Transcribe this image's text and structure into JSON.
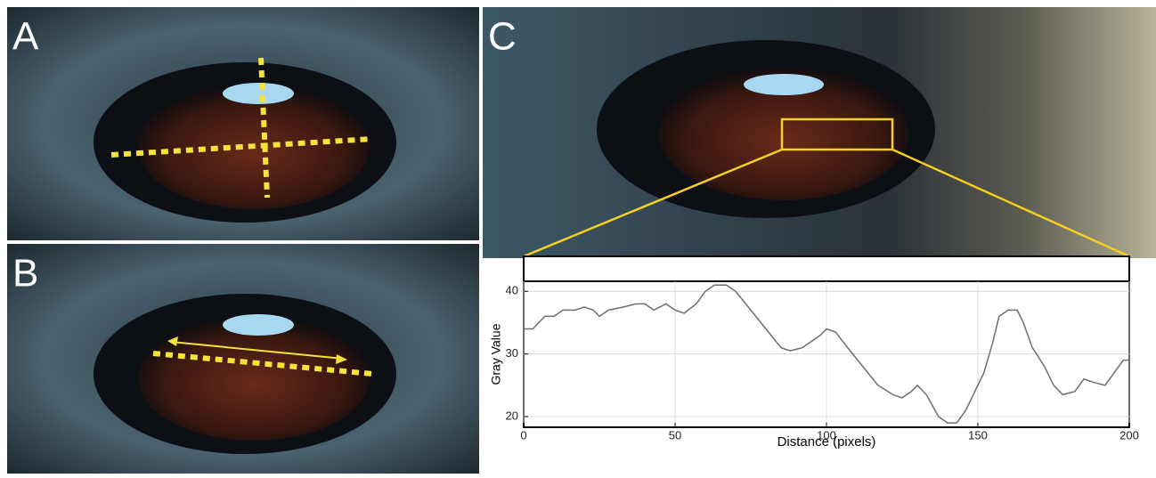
{
  "panels": [
    "A",
    "B",
    "C"
  ],
  "chart_data": {
    "type": "line",
    "xlabel": "Distance (pixels)",
    "ylabel": "Gray Value",
    "x": [
      0,
      3,
      5,
      7,
      10,
      13,
      17,
      20,
      23,
      25,
      28,
      33,
      37,
      40,
      43,
      47,
      50,
      53,
      57,
      60,
      63,
      67,
      70,
      75,
      80,
      85,
      88,
      92,
      95,
      98,
      100,
      103,
      107,
      112,
      117,
      122,
      125,
      128,
      130,
      133,
      137,
      140,
      143,
      146,
      148,
      150,
      152,
      155,
      157,
      160,
      163,
      165,
      168,
      172,
      175,
      178,
      182,
      185,
      188,
      192,
      195,
      198,
      200
    ],
    "values": [
      34,
      34,
      35,
      36,
      36,
      37,
      37,
      37.5,
      37,
      36,
      37,
      37.5,
      38,
      38,
      37,
      38,
      37,
      36.5,
      38,
      40,
      41,
      41,
      40,
      37,
      34,
      31,
      30.5,
      31,
      32,
      33,
      34,
      33.5,
      31,
      28,
      25,
      23.5,
      23,
      24,
      25,
      23.5,
      20,
      19,
      19,
      21,
      23,
      25,
      27,
      32,
      36,
      37,
      37,
      35,
      31,
      28,
      25,
      23.5,
      24,
      26,
      25.5,
      25,
      27,
      29,
      29
    ],
    "color": "#6e6e6e",
    "xlim": [
      0,
      200
    ],
    "xticks": [
      0,
      50,
      100,
      150,
      200
    ],
    "ylim": [
      18.3,
      41.6
    ],
    "yticks": [
      20,
      30,
      40
    ],
    "grid": true
  }
}
